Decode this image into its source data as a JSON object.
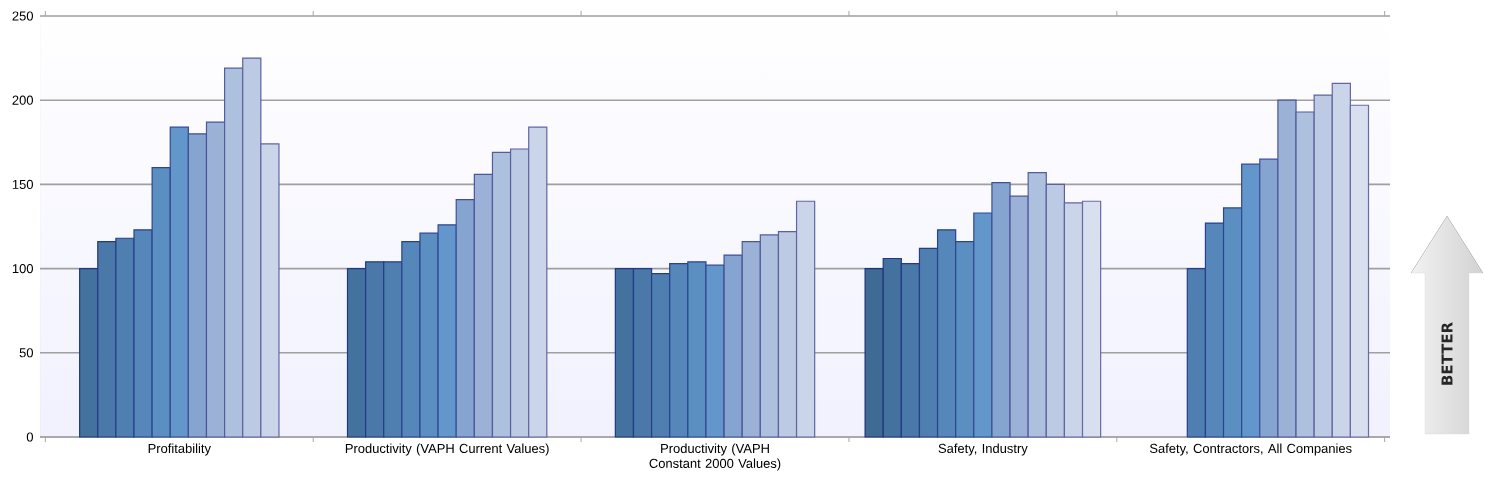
{
  "chart_data": {
    "type": "bar",
    "categories": [
      "Profitability",
      "Productivity (VAPH Current Values)",
      "Productivity (VAPH Constant 2000 Values)",
      "Safety, Industry",
      "Safety, Contractors, All Companies"
    ],
    "series": [
      {
        "color": "#3f6a94",
        "values": [
          null,
          null,
          null,
          100,
          null
        ]
      },
      {
        "color": "#44729e",
        "values": [
          100,
          100,
          100,
          106,
          null
        ]
      },
      {
        "color": "#4a78a8",
        "values": [
          116,
          104,
          100,
          103,
          null
        ]
      },
      {
        "color": "#4f7fb1",
        "values": [
          118,
          104,
          97,
          112,
          100
        ]
      },
      {
        "color": "#5587bb",
        "values": [
          123,
          116,
          103,
          123,
          127
        ]
      },
      {
        "color": "#5b8fc2",
        "values": [
          160,
          121,
          104,
          116,
          136
        ]
      },
      {
        "color": "#6396ca",
        "values": [
          184,
          126,
          102,
          133,
          162
        ]
      },
      {
        "color": "#85a5d0",
        "values": [
          180,
          141,
          108,
          151,
          165
        ]
      },
      {
        "color": "#9cb1d6",
        "values": [
          187,
          156,
          116,
          143,
          200
        ]
      },
      {
        "color": "#adc0de",
        "values": [
          219,
          169,
          120,
          157,
          193
        ]
      },
      {
        "color": "#bccae3",
        "values": [
          225,
          171,
          122,
          150,
          203
        ]
      },
      {
        "color": "#cbd5e9",
        "values": [
          174,
          184,
          140,
          139,
          210
        ]
      },
      {
        "color": "#d8dfee",
        "values": [
          null,
          null,
          null,
          140,
          197
        ]
      }
    ],
    "ylim": [
      0,
      250
    ],
    "yticks": [
      0,
      50,
      100,
      150,
      200,
      250
    ],
    "grid": "y",
    "annotations": [
      "BETTER"
    ]
  }
}
